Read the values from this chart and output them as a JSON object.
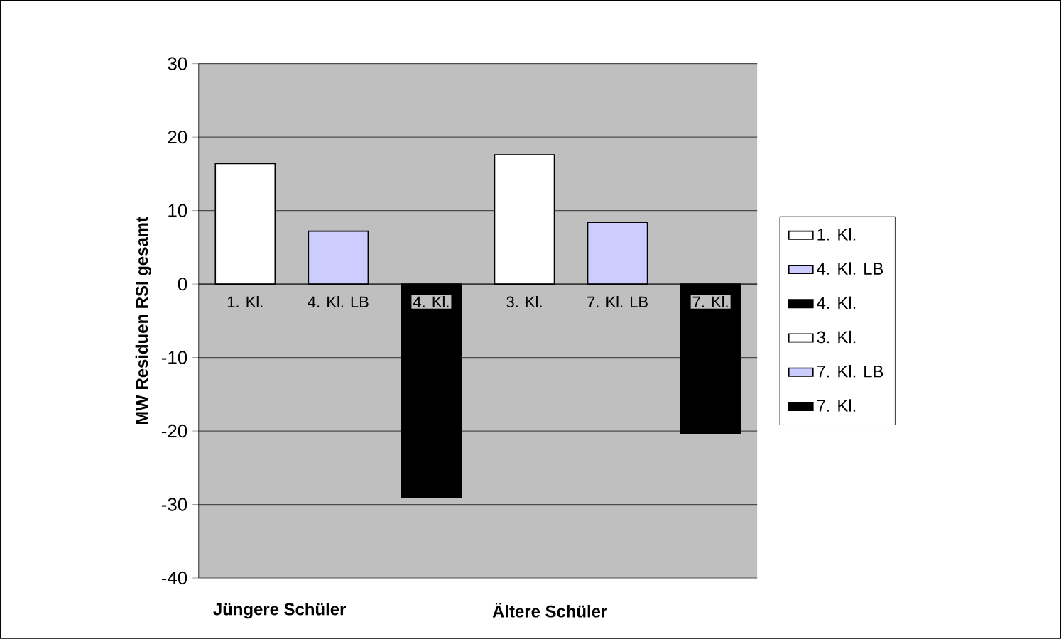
{
  "chart_data": {
    "type": "bar",
    "ylabel": "MW Residuen RSI gesamt",
    "categories": [
      "1. Kl.",
      "4. Kl. LB",
      "4. Kl.",
      "3. Kl.",
      "7. Kl. LB",
      "7. Kl."
    ],
    "series": [
      {
        "name": "1. Kl.",
        "color": "#ffffff",
        "values": [
          16.4,
          null,
          null,
          null,
          null,
          null
        ]
      },
      {
        "name": "4. Kl. LB",
        "color": "#ccccff",
        "values": [
          null,
          7.2,
          null,
          null,
          null,
          null
        ]
      },
      {
        "name": "4. Kl.",
        "color": "#000000",
        "values": [
          null,
          null,
          -29.1,
          null,
          null,
          null
        ]
      },
      {
        "name": "3. Kl.",
        "color": "#ffffff",
        "values": [
          null,
          null,
          null,
          17.6,
          null,
          null
        ]
      },
      {
        "name": "7. Kl. LB",
        "color": "#ccccff",
        "values": [
          null,
          null,
          null,
          null,
          8.4,
          null
        ]
      },
      {
        "name": "7. Kl.",
        "color": "#000000",
        "values": [
          null,
          null,
          null,
          null,
          null,
          -20.3
        ]
      }
    ],
    "annotations": [
      "Jüngere Schüler",
      "Ältere Schüler"
    ],
    "ylim": [
      -40,
      30
    ],
    "yticks": [
      -40,
      -30,
      -20,
      -10,
      0,
      10,
      20,
      30
    ],
    "grid": "y",
    "legend": "right"
  }
}
